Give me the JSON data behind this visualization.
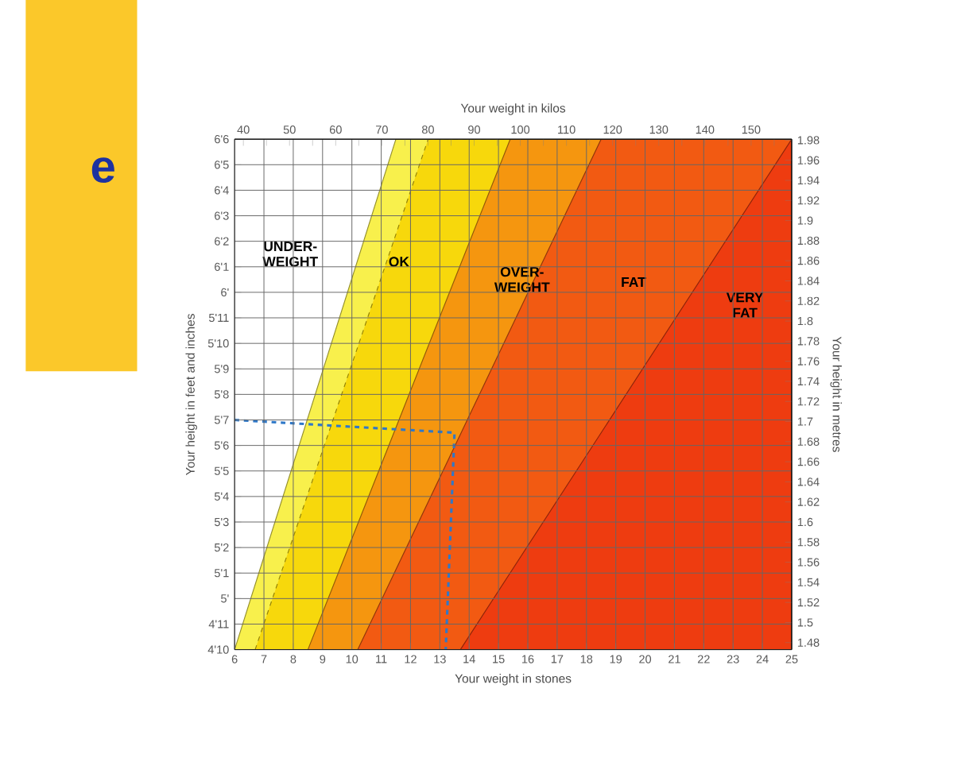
{
  "chart_data": {
    "type": "area",
    "xlabel": "Your weight in stones",
    "x2label": "Your weight in kilos",
    "ylabel": "Your height in feet and inches",
    "y2label": "Your height in metres",
    "xlim": [
      6,
      25
    ],
    "xticks": [
      6,
      7,
      8,
      9,
      10,
      11,
      12,
      13,
      14,
      15,
      16,
      17,
      18,
      19,
      20,
      21,
      22,
      23,
      24,
      25
    ],
    "ylim": [
      4.8333,
      6.5
    ],
    "yticks": [
      {
        "value": 4.8333,
        "label": "4'10"
      },
      {
        "value": 4.9167,
        "label": "4'11"
      },
      {
        "value": 5,
        "label": "5'"
      },
      {
        "value": 5.0833,
        "label": "5'1"
      },
      {
        "value": 5.1667,
        "label": "5'2"
      },
      {
        "value": 5.25,
        "label": "5'3"
      },
      {
        "value": 5.3333,
        "label": "5'4"
      },
      {
        "value": 5.4167,
        "label": "5'5"
      },
      {
        "value": 5.5,
        "label": "5'6"
      },
      {
        "value": 5.5833,
        "label": "5'7"
      },
      {
        "value": 5.6667,
        "label": "5'8"
      },
      {
        "value": 5.75,
        "label": "5'9"
      },
      {
        "value": 5.8333,
        "label": "5'10"
      },
      {
        "value": 5.9167,
        "label": "5'11"
      },
      {
        "value": 6,
        "label": "6'"
      },
      {
        "value": 6.0833,
        "label": "6'1"
      },
      {
        "value": 6.1667,
        "label": "6'2"
      },
      {
        "value": 6.25,
        "label": "6'3"
      },
      {
        "value": 6.3333,
        "label": "6'4"
      },
      {
        "value": 6.4167,
        "label": "6'5"
      },
      {
        "value": 6.5,
        "label": "6'6"
      }
    ],
    "x2lim": [
      38.1,
      158.8
    ],
    "x2ticks": [
      40,
      {
        "value": 45,
        "label": null
      },
      50,
      {
        "value": 55,
        "label": null
      },
      60,
      {
        "value": 65,
        "label": null
      },
      70,
      {
        "value": 75,
        "label": null
      },
      80,
      {
        "value": 85,
        "label": null
      },
      90,
      {
        "value": 95,
        "label": null
      },
      100,
      {
        "value": 105,
        "label": null
      },
      110,
      {
        "value": 115,
        "label": null
      },
      120,
      {
        "value": 125,
        "label": null
      },
      130,
      {
        "value": 135,
        "label": null
      },
      140,
      {
        "value": 145,
        "label": null
      },
      150,
      {
        "value": 155,
        "label": null
      }
    ],
    "y2lim": [
      1.473,
      1.981
    ],
    "y2ticks": [
      1.48,
      1.5,
      1.52,
      1.54,
      1.56,
      1.58,
      1.6,
      1.62,
      1.64,
      1.66,
      1.68,
      1.7,
      1.72,
      1.74,
      1.76,
      1.78,
      1.8,
      1.82,
      1.84,
      1.86,
      1.88,
      1.9,
      1.92,
      1.94,
      1.96,
      1.98
    ],
    "grid": true,
    "series": [
      {
        "color": "#f8f04c",
        "x": [
          6,
          11.5,
          25,
          25
        ],
        "values": [
          4.8333,
          6.5,
          6.5,
          4.8333
        ]
      },
      {
        "color": "#f7d80c",
        "x": [
          6.7,
          12.6,
          25,
          25
        ],
        "values": [
          4.8333,
          6.5,
          6.5,
          4.8333
        ],
        "line_style": "dashed"
      },
      {
        "color": "#f5960f",
        "x": [
          8.5,
          15.4,
          25,
          25
        ],
        "values": [
          4.8333,
          6.5,
          6.5,
          4.8333
        ]
      },
      {
        "color": "#f25a12",
        "x": [
          10.2,
          18.5,
          25,
          25
        ],
        "values": [
          4.8333,
          6.5,
          6.5,
          4.8333
        ]
      },
      {
        "color": "#ee3c10",
        "x": [
          13.7,
          25,
          25
        ],
        "values": [
          4.8333,
          6.5,
          4.8333
        ]
      },
      {
        "type": "line",
        "color": "#2f78c8",
        "line_style": "dashed",
        "x": [
          6,
          13.5,
          13.2
        ],
        "values": [
          5.5833,
          5.5417,
          4.8333
        ]
      }
    ],
    "annotations": [
      "UNDER-WEIGHT",
      "OK",
      "OVER-WEIGHT",
      "FAT",
      "VERY FAT",
      "e"
    ]
  }
}
